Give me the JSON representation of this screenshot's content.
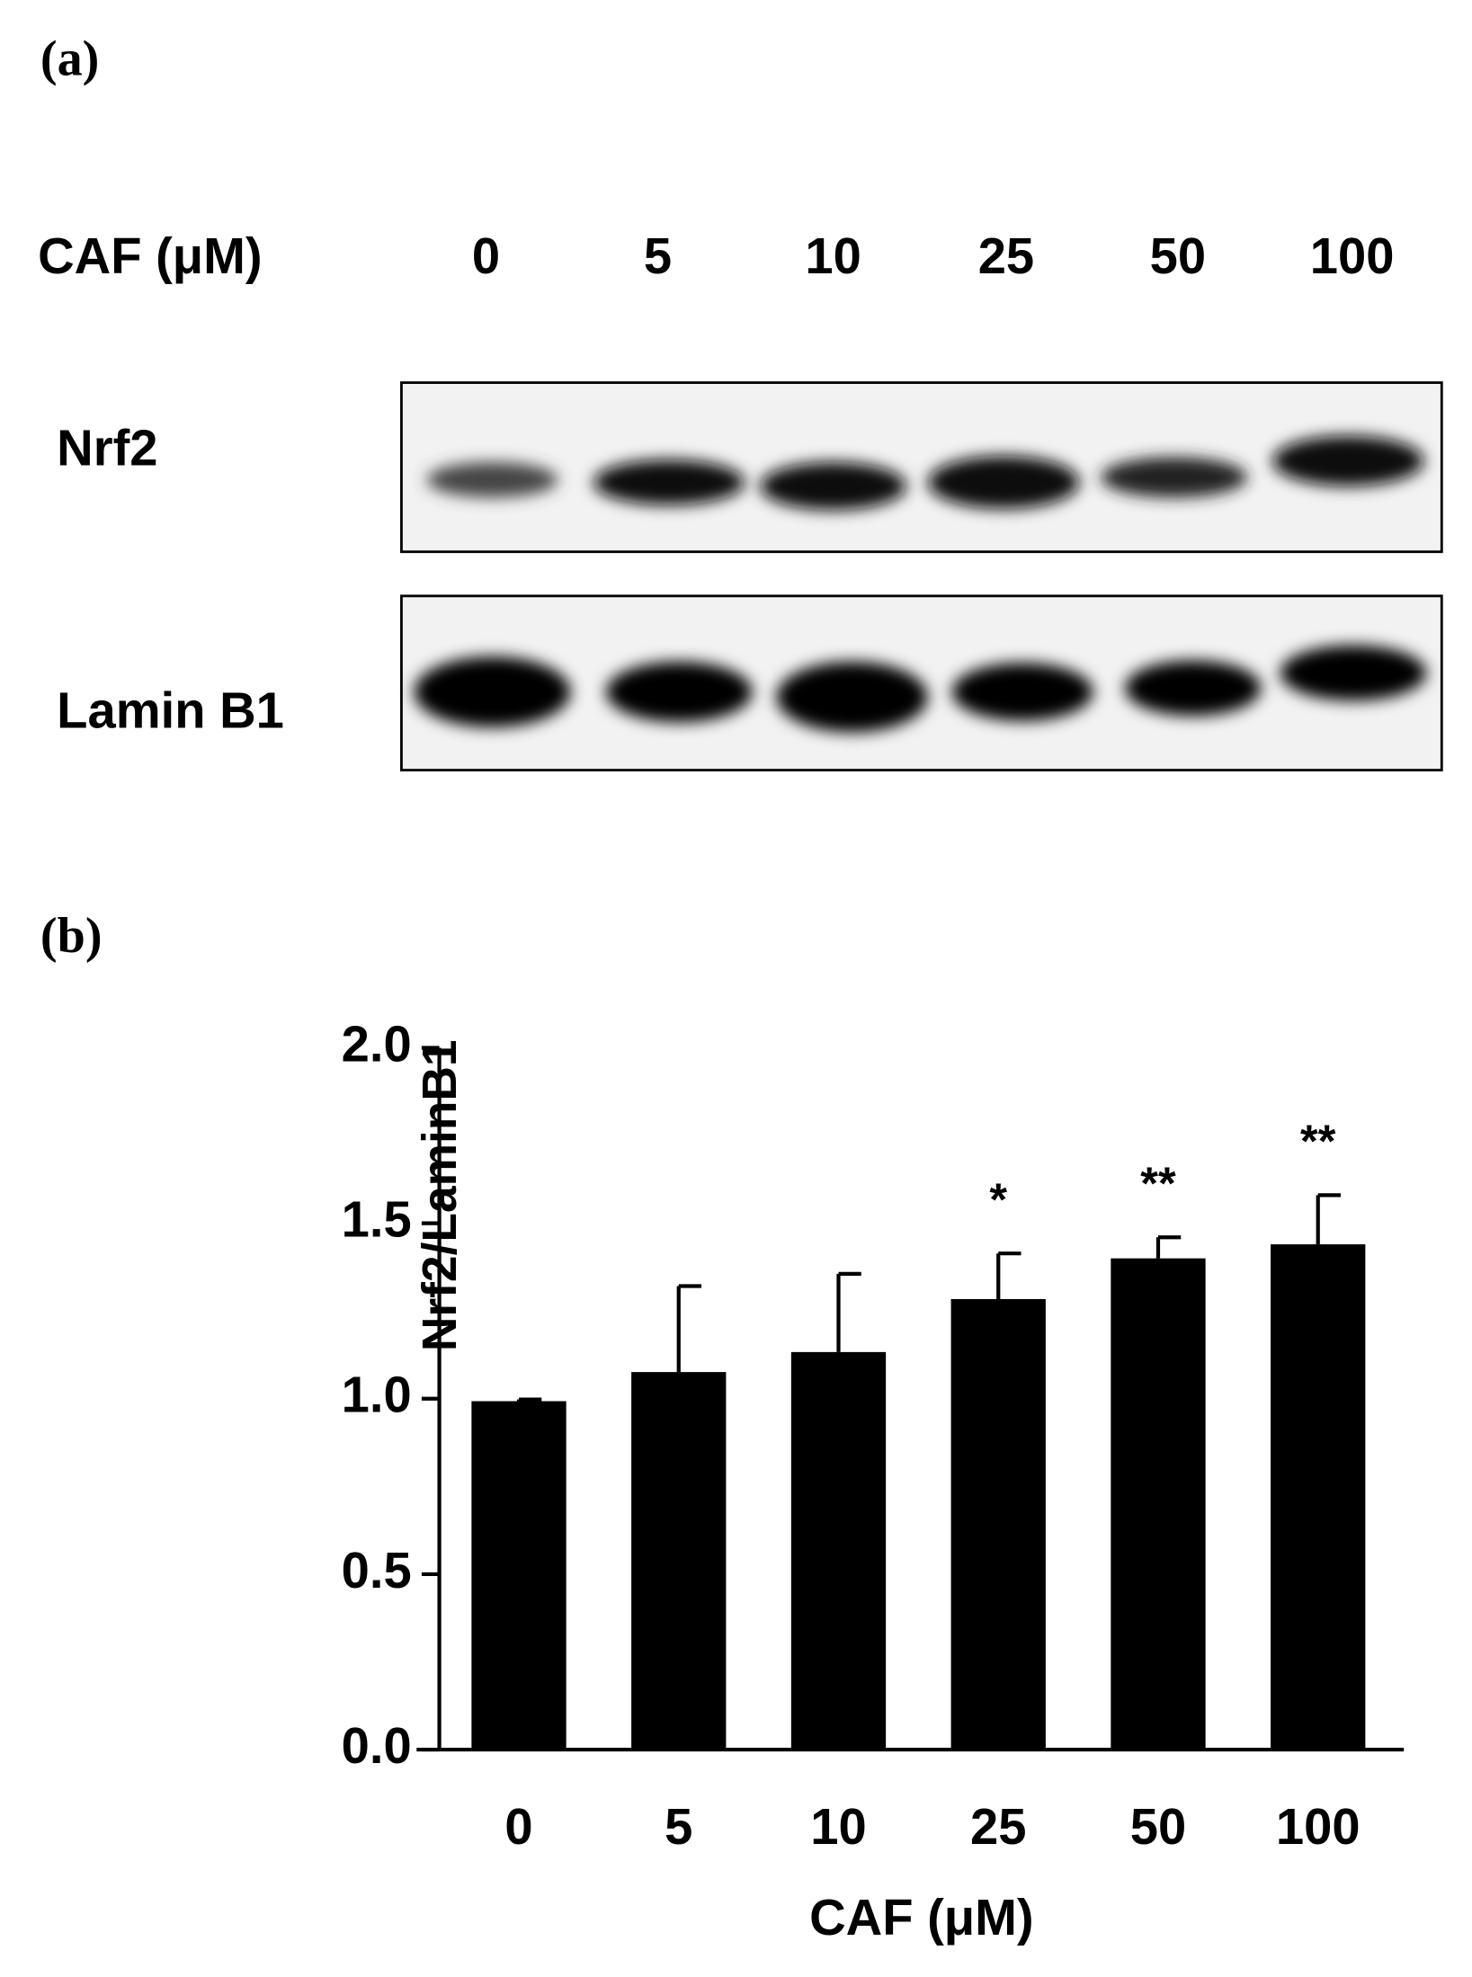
{
  "panel_labels": [
    "(a)",
    "(b)"
  ],
  "blot": {
    "treatment_label": "CAF (μM)",
    "lanes": [
      "0",
      "5",
      "10",
      "25",
      "50",
      "100"
    ],
    "rows": [
      "Nrf2",
      "Lamin B1"
    ]
  },
  "chart_data": {
    "type": "bar",
    "categories": [
      "0",
      "5",
      "10",
      "25",
      "50",
      "100"
    ],
    "values": [
      0.993,
      1.076,
      1.133,
      1.284,
      1.4,
      1.44
    ],
    "errors": [
      0.005,
      0.245,
      0.223,
      0.13,
      0.06,
      0.14
    ],
    "significance": [
      null,
      null,
      null,
      "*",
      "**",
      "**"
    ],
    "color": "#000000",
    "x_label": "CAF (μM)",
    "y_label": "Nrf2/LaminB1",
    "ylim": [
      0,
      2
    ],
    "yticks": [
      {
        "value": 0,
        "label": "0.0"
      },
      0.5,
      {
        "value": 1,
        "label": "1.0"
      },
      1.5,
      {
        "value": 2,
        "label": "2.0"
      }
    ]
  }
}
